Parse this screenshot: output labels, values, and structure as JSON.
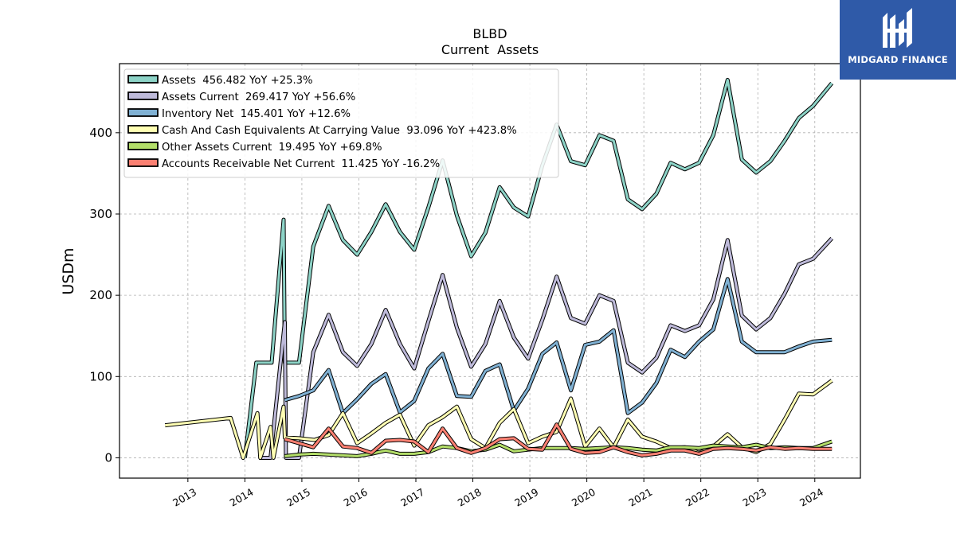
{
  "chart_data": {
    "type": "line",
    "title": "BLBD",
    "subtitle": "Current  Assets",
    "ylabel": "USDm",
    "xlabel": "",
    "ylim": [
      -25,
      485
    ],
    "xlim": [
      2011.8,
      2024.8
    ],
    "yticks": [
      0,
      100,
      200,
      300,
      400
    ],
    "xticks": [
      2013,
      2014,
      2015,
      2016,
      2017,
      2018,
      2019,
      2020,
      2021,
      2022,
      2023,
      2024
    ],
    "grid": true,
    "legend_position": "top-left",
    "series": [
      {
        "name": "Assets  456.482 YoY +25.3%",
        "color": "#8dd3c7",
        "points": [
          [
            2014.0,
            0
          ],
          [
            2014.2,
            117
          ],
          [
            2014.47,
            117
          ],
          [
            2014.68,
            293
          ],
          [
            2014.7,
            117
          ],
          [
            2014.95,
            117
          ],
          [
            2015.2,
            260
          ],
          [
            2015.47,
            310
          ],
          [
            2015.72,
            268
          ],
          [
            2015.97,
            250
          ],
          [
            2016.22,
            278
          ],
          [
            2016.47,
            312
          ],
          [
            2016.72,
            278
          ],
          [
            2016.97,
            256
          ],
          [
            2017.22,
            308
          ],
          [
            2017.47,
            366
          ],
          [
            2017.72,
            298
          ],
          [
            2017.97,
            248
          ],
          [
            2018.22,
            277
          ],
          [
            2018.47,
            333
          ],
          [
            2018.72,
            308
          ],
          [
            2018.97,
            297
          ],
          [
            2019.22,
            360
          ],
          [
            2019.47,
            410
          ],
          [
            2019.72,
            365
          ],
          [
            2019.97,
            360
          ],
          [
            2020.22,
            397
          ],
          [
            2020.47,
            390
          ],
          [
            2020.72,
            318
          ],
          [
            2020.97,
            306
          ],
          [
            2021.22,
            325
          ],
          [
            2021.47,
            363
          ],
          [
            2021.72,
            355
          ],
          [
            2021.97,
            363
          ],
          [
            2022.22,
            397
          ],
          [
            2022.47,
            465
          ],
          [
            2022.72,
            367
          ],
          [
            2022.97,
            351
          ],
          [
            2023.22,
            365
          ],
          [
            2023.47,
            390
          ],
          [
            2023.72,
            418
          ],
          [
            2023.97,
            433
          ],
          [
            2024.3,
            461
          ]
        ]
      },
      {
        "name": "Assets Current  269.417 YoY +56.6%",
        "color": "#bebada",
        "points": [
          [
            2014.25,
            0
          ],
          [
            2014.45,
            0
          ],
          [
            2014.7,
            167
          ],
          [
            2014.72,
            0
          ],
          [
            2014.95,
            0
          ],
          [
            2015.2,
            130
          ],
          [
            2015.47,
            176
          ],
          [
            2015.72,
            130
          ],
          [
            2015.97,
            113
          ],
          [
            2016.22,
            140
          ],
          [
            2016.47,
            182
          ],
          [
            2016.72,
            140
          ],
          [
            2016.97,
            110
          ],
          [
            2017.22,
            168
          ],
          [
            2017.47,
            225
          ],
          [
            2017.72,
            160
          ],
          [
            2017.97,
            112
          ],
          [
            2018.22,
            140
          ],
          [
            2018.47,
            193
          ],
          [
            2018.72,
            148
          ],
          [
            2018.97,
            122
          ],
          [
            2019.22,
            170
          ],
          [
            2019.47,
            223
          ],
          [
            2019.72,
            172
          ],
          [
            2019.97,
            165
          ],
          [
            2020.22,
            200
          ],
          [
            2020.47,
            193
          ],
          [
            2020.72,
            117
          ],
          [
            2020.97,
            105
          ],
          [
            2021.22,
            123
          ],
          [
            2021.47,
            163
          ],
          [
            2021.72,
            156
          ],
          [
            2021.97,
            163
          ],
          [
            2022.22,
            195
          ],
          [
            2022.47,
            268
          ],
          [
            2022.72,
            175
          ],
          [
            2022.97,
            158
          ],
          [
            2023.22,
            172
          ],
          [
            2023.47,
            202
          ],
          [
            2023.72,
            238
          ],
          [
            2023.97,
            245
          ],
          [
            2024.3,
            270
          ]
        ]
      },
      {
        "name": "Inventory Net  145.401 YoY +12.6%",
        "color": "#80b1d3",
        "points": [
          [
            2014.7,
            71
          ],
          [
            2014.95,
            76
          ],
          [
            2015.2,
            83
          ],
          [
            2015.47,
            108
          ],
          [
            2015.72,
            55
          ],
          [
            2015.97,
            72
          ],
          [
            2016.22,
            91
          ],
          [
            2016.47,
            103
          ],
          [
            2016.72,
            56
          ],
          [
            2016.97,
            70
          ],
          [
            2017.22,
            110
          ],
          [
            2017.47,
            128
          ],
          [
            2017.72,
            76
          ],
          [
            2017.97,
            75
          ],
          [
            2018.22,
            107
          ],
          [
            2018.47,
            115
          ],
          [
            2018.72,
            58
          ],
          [
            2018.97,
            85
          ],
          [
            2019.22,
            128
          ],
          [
            2019.47,
            142
          ],
          [
            2019.72,
            83
          ],
          [
            2019.97,
            139
          ],
          [
            2020.22,
            143
          ],
          [
            2020.47,
            157
          ],
          [
            2020.72,
            55
          ],
          [
            2020.97,
            68
          ],
          [
            2021.22,
            92
          ],
          [
            2021.47,
            133
          ],
          [
            2021.72,
            124
          ],
          [
            2021.97,
            143
          ],
          [
            2022.22,
            158
          ],
          [
            2022.47,
            220
          ],
          [
            2022.72,
            143
          ],
          [
            2022.97,
            130
          ],
          [
            2023.22,
            130
          ],
          [
            2023.47,
            130
          ],
          [
            2023.72,
            137
          ],
          [
            2023.97,
            143
          ],
          [
            2024.3,
            145
          ]
        ]
      },
      {
        "name": "Cash And Cash Equivalents At Carrying Value  93.096 YoY +423.8%",
        "color": "#ffffb3",
        "points": [
          [
            2012.6,
            40
          ],
          [
            2013.75,
            49
          ],
          [
            2013.97,
            0
          ],
          [
            2014.22,
            55
          ],
          [
            2014.27,
            0
          ],
          [
            2014.45,
            38
          ],
          [
            2014.5,
            0
          ],
          [
            2014.68,
            63
          ],
          [
            2014.7,
            25
          ],
          [
            2014.95,
            24
          ],
          [
            2015.22,
            22
          ],
          [
            2015.47,
            28
          ],
          [
            2015.72,
            55
          ],
          [
            2015.97,
            18
          ],
          [
            2016.22,
            30
          ],
          [
            2016.47,
            43
          ],
          [
            2016.72,
            53
          ],
          [
            2016.97,
            15
          ],
          [
            2017.22,
            40
          ],
          [
            2017.47,
            50
          ],
          [
            2017.72,
            63
          ],
          [
            2017.97,
            23
          ],
          [
            2018.22,
            12
          ],
          [
            2018.47,
            43
          ],
          [
            2018.72,
            60
          ],
          [
            2018.97,
            18
          ],
          [
            2019.22,
            26
          ],
          [
            2019.47,
            32
          ],
          [
            2019.72,
            73
          ],
          [
            2019.97,
            14
          ],
          [
            2020.22,
            36
          ],
          [
            2020.47,
            13
          ],
          [
            2020.72,
            47
          ],
          [
            2020.97,
            26
          ],
          [
            2021.22,
            20
          ],
          [
            2021.47,
            12
          ],
          [
            2021.72,
            13
          ],
          [
            2021.97,
            6
          ],
          [
            2022.22,
            14
          ],
          [
            2022.47,
            29
          ],
          [
            2022.72,
            13
          ],
          [
            2022.97,
            7
          ],
          [
            2023.22,
            17
          ],
          [
            2023.47,
            47
          ],
          [
            2023.72,
            79
          ],
          [
            2023.97,
            78
          ],
          [
            2024.3,
            95
          ]
        ]
      },
      {
        "name": "Other Assets Current  19.495 YoY +69.8%",
        "color": "#b3de69",
        "points": [
          [
            2014.7,
            2
          ],
          [
            2014.95,
            4
          ],
          [
            2015.2,
            5
          ],
          [
            2015.47,
            4
          ],
          [
            2015.72,
            3
          ],
          [
            2015.97,
            2
          ],
          [
            2016.22,
            5
          ],
          [
            2016.47,
            9
          ],
          [
            2016.72,
            5
          ],
          [
            2016.97,
            5
          ],
          [
            2017.22,
            7
          ],
          [
            2017.47,
            14
          ],
          [
            2017.72,
            12
          ],
          [
            2017.97,
            8
          ],
          [
            2018.22,
            10
          ],
          [
            2018.47,
            16
          ],
          [
            2018.72,
            8
          ],
          [
            2018.97,
            10
          ],
          [
            2019.22,
            12
          ],
          [
            2019.47,
            12
          ],
          [
            2019.72,
            12
          ],
          [
            2019.97,
            11
          ],
          [
            2020.22,
            12
          ],
          [
            2020.47,
            13
          ],
          [
            2020.72,
            12
          ],
          [
            2020.97,
            10
          ],
          [
            2021.22,
            9
          ],
          [
            2021.47,
            13
          ],
          [
            2021.72,
            13
          ],
          [
            2021.97,
            12
          ],
          [
            2022.22,
            15
          ],
          [
            2022.47,
            14
          ],
          [
            2022.72,
            13
          ],
          [
            2022.97,
            16
          ],
          [
            2023.22,
            12
          ],
          [
            2023.47,
            13
          ],
          [
            2023.72,
            12
          ],
          [
            2023.97,
            12
          ],
          [
            2024.3,
            20
          ]
        ]
      },
      {
        "name": "Accounts Receivable Net Current  11.425 YoY -16.2%",
        "color": "#fb8072",
        "points": [
          [
            2014.7,
            23
          ],
          [
            2014.95,
            18
          ],
          [
            2015.2,
            13
          ],
          [
            2015.47,
            36
          ],
          [
            2015.72,
            14
          ],
          [
            2015.97,
            12
          ],
          [
            2016.22,
            6
          ],
          [
            2016.47,
            21
          ],
          [
            2016.72,
            22
          ],
          [
            2016.97,
            20
          ],
          [
            2017.22,
            7
          ],
          [
            2017.47,
            36
          ],
          [
            2017.72,
            12
          ],
          [
            2017.97,
            6
          ],
          [
            2018.22,
            12
          ],
          [
            2018.47,
            23
          ],
          [
            2018.72,
            24
          ],
          [
            2018.97,
            11
          ],
          [
            2019.22,
            10
          ],
          [
            2019.47,
            41
          ],
          [
            2019.72,
            11
          ],
          [
            2019.97,
            6
          ],
          [
            2020.22,
            7
          ],
          [
            2020.47,
            13
          ],
          [
            2020.72,
            7
          ],
          [
            2020.97,
            3
          ],
          [
            2021.22,
            5
          ],
          [
            2021.47,
            9
          ],
          [
            2021.72,
            9
          ],
          [
            2021.97,
            5
          ],
          [
            2022.22,
            11
          ],
          [
            2022.47,
            12
          ],
          [
            2022.72,
            11
          ],
          [
            2022.97,
            9
          ],
          [
            2023.22,
            13
          ],
          [
            2023.47,
            11
          ],
          [
            2023.72,
            12
          ],
          [
            2023.97,
            11
          ],
          [
            2024.3,
            11
          ]
        ]
      }
    ]
  },
  "logo": {
    "text": "MIDGARD FINANCE"
  }
}
